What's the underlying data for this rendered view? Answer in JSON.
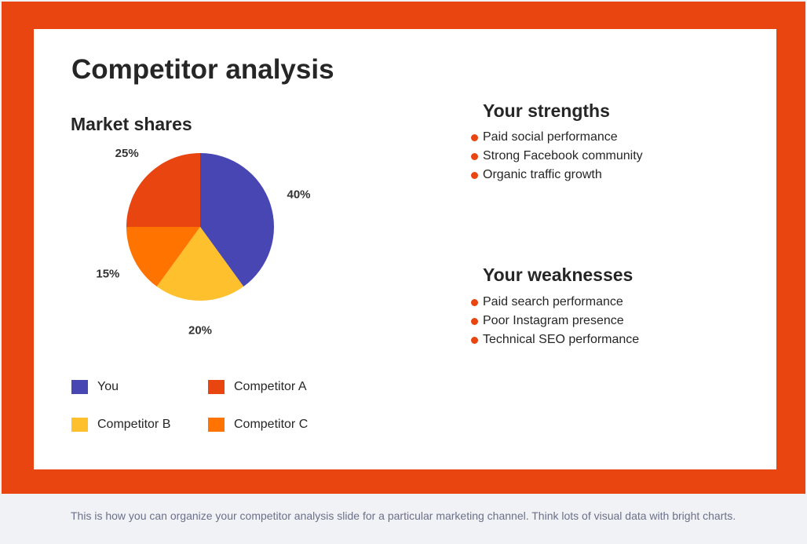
{
  "slide": {
    "title": "Competitor analysis",
    "strengths": {
      "heading": "Your strengths",
      "items": [
        "Paid social performance",
        "Strong Facebook community",
        "Organic traffic growth"
      ]
    },
    "weaknesses": {
      "heading": "Your weaknesses",
      "items": [
        "Paid search performance",
        "Poor Instagram presence",
        "Technical SEO performance"
      ]
    }
  },
  "caption": "This is how you can organize your competitor analysis slide for a particular marketing channel. Think lots of visual data with bright charts.",
  "colors": {
    "frame": "#e84511",
    "bullet": "#e84511"
  },
  "chart_data": {
    "type": "pie",
    "title": "Market shares",
    "categories": [
      "You",
      "Competitor B",
      "Competitor C",
      "Competitor A"
    ],
    "values": [
      40,
      20,
      15,
      25
    ],
    "labels": [
      "40%",
      "20%",
      "15%",
      "25%"
    ],
    "colors": [
      "#4846b2",
      "#ffc02e",
      "#ff7400",
      "#e84511"
    ],
    "legend": [
      {
        "name": "You",
        "color": "#4846b2"
      },
      {
        "name": "Competitor A",
        "color": "#e84511"
      },
      {
        "name": "Competitor B",
        "color": "#ffc02e"
      },
      {
        "name": "Competitor C",
        "color": "#ff7400"
      }
    ],
    "legend_placement": "bottom"
  }
}
